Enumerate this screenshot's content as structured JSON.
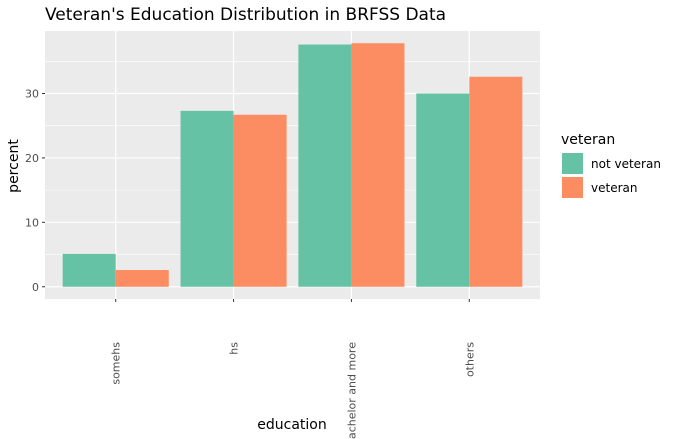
{
  "chart_data": {
    "type": "bar",
    "title": "Veteran's Education Distribution in BRFSS Data",
    "xlabel": "education",
    "ylabel": "percent",
    "categories": [
      "somehs",
      "hs",
      "bachelor and more",
      "others"
    ],
    "series": [
      {
        "name": "not veteran",
        "values": [
          5.1,
          27.3,
          37.6,
          30.0
        ],
        "color": "#66C2A5"
      },
      {
        "name": "veteran",
        "values": [
          2.6,
          26.7,
          37.8,
          32.6
        ],
        "color": "#FC8D62"
      }
    ],
    "ylim": [
      -1.9,
      39.7
    ],
    "yticks": [
      0,
      10,
      20,
      30
    ],
    "grid": true,
    "legend": {
      "title": "veteran",
      "placement": "right"
    },
    "colors": {
      "panel_background": "#EBEBEB",
      "grid": "#FFFFFF"
    }
  }
}
